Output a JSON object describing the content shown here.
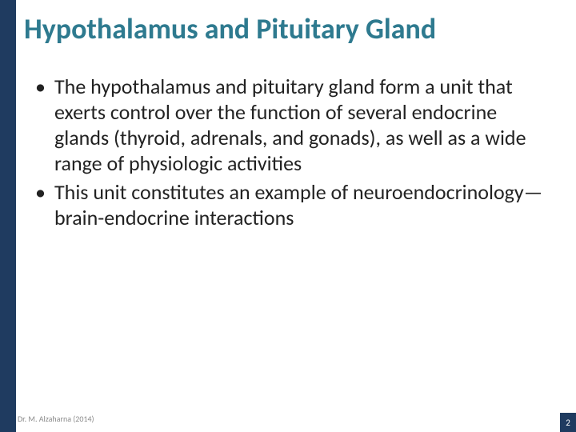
{
  "colors": {
    "left_bar": "#1f3b60",
    "title": "#2e7a8f",
    "body_text": "#222222",
    "bullet": "#222222",
    "footer_text": "#8a8a8a",
    "page_box_bg": "#1f3b60",
    "page_number": "#ffffff",
    "slide_bg": "#ffffff"
  },
  "typography": {
    "title_fontsize": 36,
    "body_fontsize": 26,
    "body_lineheight": 32,
    "footer_fontsize": 10,
    "page_fontsize": 11
  },
  "title": "Hypothalamus and Pituitary Gland",
  "bullets": [
    "The hypothalamus and pituitary gland form a unit that exerts control over the function of several endocrine glands (thyroid, adrenals, and gonads), as well as a wide range of physiologic activities",
    "This unit constitutes an example of neuroendocrinology—brain-endocrine interactions"
  ],
  "footer": {
    "author": "Dr. M. Alzaharna (2014)",
    "page_number": "2"
  }
}
